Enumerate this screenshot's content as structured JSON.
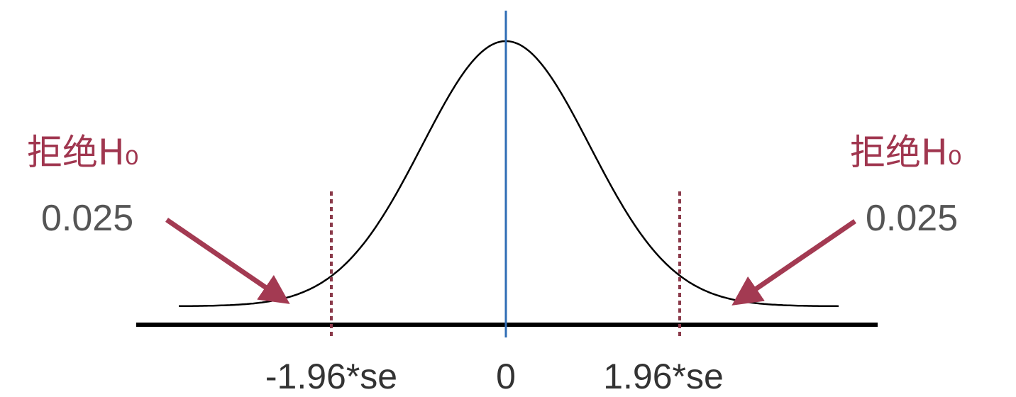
{
  "left": {
    "label": "拒绝H₀",
    "probability": "0.025"
  },
  "right": {
    "label": "拒绝H₀",
    "probability": "0.025"
  },
  "axis_labels": [
    "-1.96*se",
    "0",
    "1.96*se"
  ]
}
